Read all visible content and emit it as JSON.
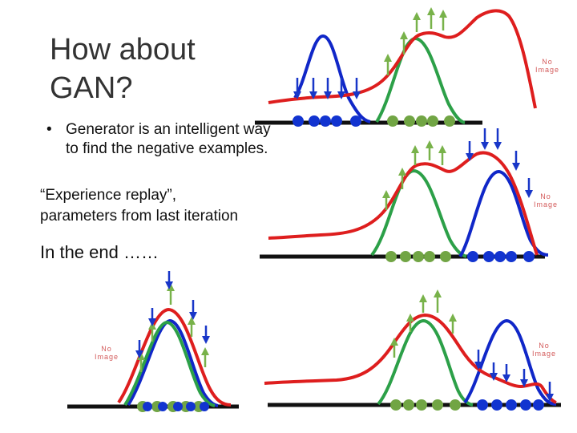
{
  "slide": {
    "title_line1": "How about",
    "title_line2": "GAN?",
    "bullet": "Generator is an intelligent way to find the negative examples.",
    "line2": "“Experience replay”,",
    "line3": "parameters from last iteration",
    "ending": "In the end ……",
    "placeholder_line1": "No",
    "placeholder_line2": "Image"
  },
  "colors": {
    "real_data": "#2ca048",
    "generated": "#1027c8",
    "discriminator": "#de1e1e",
    "up_arrow": "#78b24a",
    "down_arrow": "#1836c8",
    "axis": "#111111",
    "green_dot": "#71a544",
    "blue_dot": "#1234d0"
  },
  "icons": [
    "up-arrow-icon",
    "down-arrow-icon",
    "image-placeholder-icon"
  ]
}
